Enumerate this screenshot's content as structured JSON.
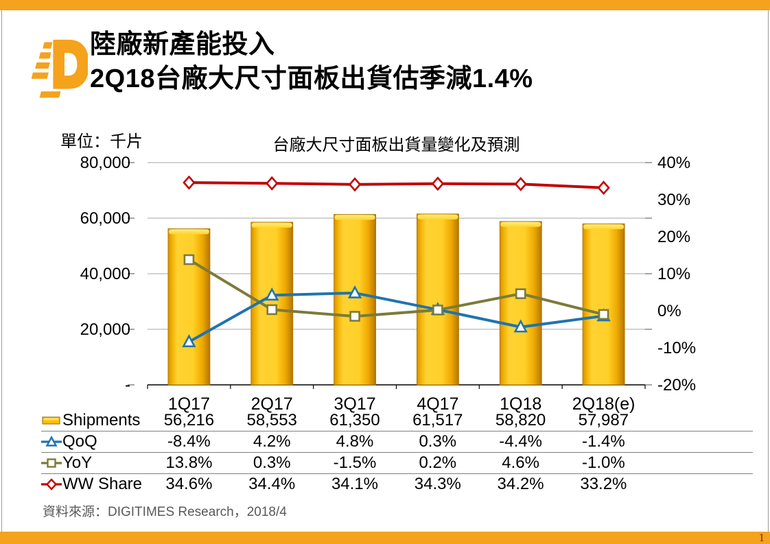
{
  "slide": {
    "title_line1": "陸廠新產能投入",
    "title_line2": "2Q18台廠大尺寸面板出貨估季減1.4%",
    "unit_label": "單位：千片",
    "source": "資料來源：DIGITIMES Research，2018/4",
    "page_number": "1"
  },
  "colors": {
    "accent_orange": "#F5A21D",
    "bar_gold": "#FFC000",
    "bar_edge": "#A67200",
    "qoq_blue": "#1F74B0",
    "yoy_olive": "#7C7B39",
    "ww_red": "#C00000",
    "gridline_gray": "#A6A6A6",
    "tick_gray": "#808080",
    "table_line_gray": "#7F7F7F",
    "source_gray": "#595959",
    "page_number_color": "#7B2E00"
  },
  "chart_data": {
    "type": "combo-bar-line",
    "title": "台廠大尺寸面板出貨量變化及預測",
    "unit": "單位：千片",
    "grid": "horizontal-major",
    "legend_position": "table-left",
    "categories": [
      "1Q17",
      "2Q17",
      "3Q17",
      "4Q17",
      "1Q18",
      "2Q18(e)"
    ],
    "bar_series": {
      "name": "Shipments",
      "axis": "left",
      "values": [
        56216,
        58553,
        61350,
        61517,
        58820,
        57987
      ]
    },
    "line_series": [
      {
        "name": "QoQ",
        "axis": "right",
        "marker": "triangle",
        "values_pct": [
          -8.4,
          4.2,
          4.8,
          0.3,
          -4.4,
          -1.4
        ]
      },
      {
        "name": "YoY",
        "axis": "right",
        "marker": "square",
        "values_pct": [
          13.8,
          0.3,
          -1.5,
          0.2,
          4.6,
          -1.0
        ]
      },
      {
        "name": "WW Share",
        "axis": "right",
        "marker": "diamond",
        "values_pct": [
          34.6,
          34.4,
          34.1,
          34.3,
          34.2,
          33.2
        ]
      }
    ],
    "left_axis": {
      "min": 0,
      "max": 80000,
      "tick_labels": [
        "80,000",
        "60,000",
        "40,000",
        "20,000",
        "-"
      ],
      "tick_values": [
        80000,
        60000,
        40000,
        20000,
        0
      ]
    },
    "right_axis": {
      "min": -20,
      "max": 40,
      "tick_labels": [
        "40%",
        "30%",
        "20%",
        "10%",
        "0%",
        "-10%",
        "-20%"
      ],
      "tick_values": [
        40,
        30,
        20,
        10,
        0,
        -10,
        -20
      ]
    },
    "table_rows": [
      {
        "label": "Shipments",
        "values": [
          "56,216",
          "58,553",
          "61,350",
          "61,517",
          "58,820",
          "57,987"
        ]
      },
      {
        "label": "QoQ",
        "values": [
          "-8.4%",
          "4.2%",
          "4.8%",
          "0.3%",
          "-4.4%",
          "-1.4%"
        ]
      },
      {
        "label": "YoY",
        "values": [
          "13.8%",
          "0.3%",
          "-1.5%",
          "0.2%",
          "4.6%",
          "-1.0%"
        ]
      },
      {
        "label": "WW Share",
        "values": [
          "34.6%",
          "34.4%",
          "34.1%",
          "34.3%",
          "34.2%",
          "33.2%"
        ]
      }
    ]
  }
}
